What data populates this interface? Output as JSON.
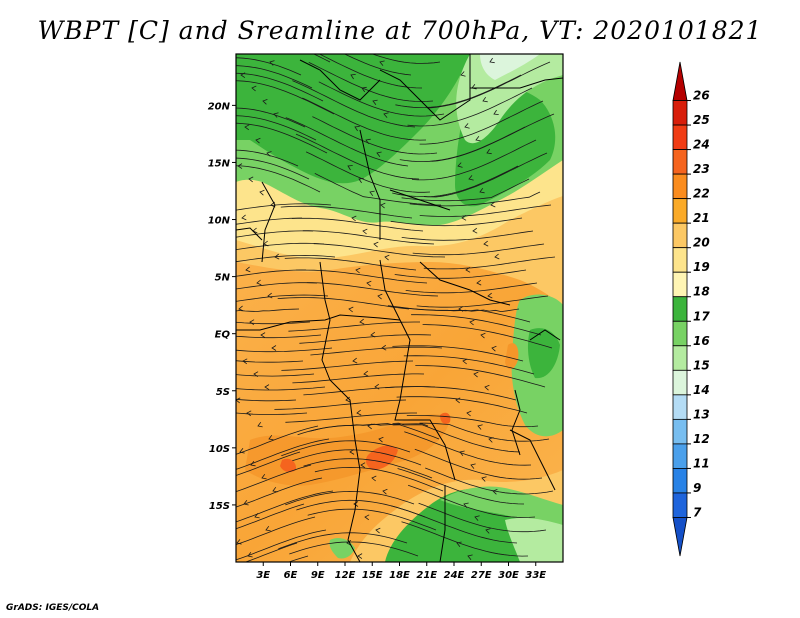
{
  "title": "WBPT [C] and Sreamline at 700hPa, VT: 2020101821",
  "credit": "GrADS: IGES/COLA",
  "map": {
    "lon_range": [
      0,
      36
    ],
    "lat_range": [
      -20,
      24.5
    ],
    "lat_ticks": [
      {
        "value": 20,
        "label": "20N"
      },
      {
        "value": 15,
        "label": "15N"
      },
      {
        "value": 10,
        "label": "10N"
      },
      {
        "value": 5,
        "label": "5N"
      },
      {
        "value": 0,
        "label": "EQ"
      },
      {
        "value": -5,
        "label": "5S"
      },
      {
        "value": -10,
        "label": "10S"
      },
      {
        "value": -15,
        "label": "15S"
      }
    ],
    "lon_ticks": [
      {
        "value": 3,
        "label": "3E"
      },
      {
        "value": 6,
        "label": "6E"
      },
      {
        "value": 9,
        "label": "9E"
      },
      {
        "value": 12,
        "label": "12E"
      },
      {
        "value": 15,
        "label": "15E"
      },
      {
        "value": 18,
        "label": "18E"
      },
      {
        "value": 21,
        "label": "21E"
      },
      {
        "value": 24,
        "label": "24E"
      },
      {
        "value": 27,
        "label": "27E"
      },
      {
        "value": 30,
        "label": "30E"
      },
      {
        "value": 33,
        "label": "33E"
      }
    ]
  },
  "colorbar": {
    "labels": [
      "26",
      "25",
      "24",
      "23",
      "22",
      "21",
      "20",
      "19",
      "18",
      "17",
      "16",
      "15",
      "14",
      "13",
      "12",
      "11",
      "9",
      "7"
    ],
    "colors": [
      "#b40000",
      "#d81e0a",
      "#f03c14",
      "#f5641e",
      "#fa8c1e",
      "#faaa28",
      "#fcc864",
      "#fde48c",
      "#fff5b4",
      "#3cb43c",
      "#78d264",
      "#b4eba0",
      "#dcf5dc",
      "#b4dcf5",
      "#78bef0",
      "#4ba0eb",
      "#2882e6",
      "#1e64dc",
      "#1450c8"
    ]
  }
}
